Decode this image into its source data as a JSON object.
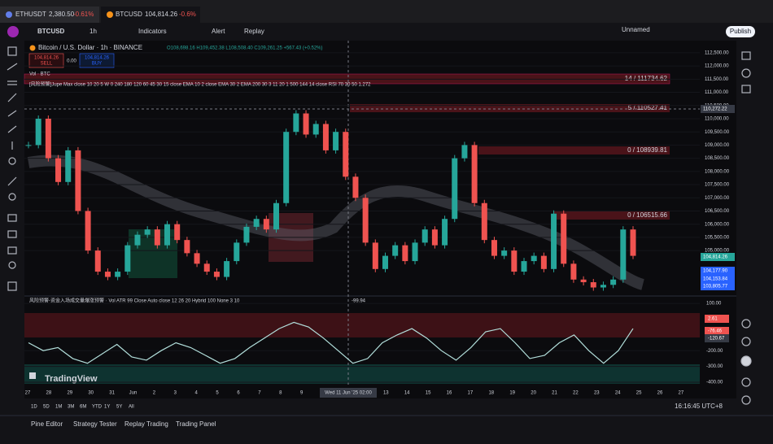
{
  "tabs": [
    {
      "symbol": "ETHUSDT",
      "price": "2,380.50",
      "change": "-0.61%"
    },
    {
      "symbol": "BTCUSD",
      "price": "104,814.26",
      "change": "-0.6%"
    }
  ],
  "toolbar": {
    "symbol": "BTCUSD",
    "interval": "1h",
    "indicators": "Indicators",
    "alert": "Alert",
    "replay": "Replay",
    "layout": "Unnamed",
    "publish": "Publish"
  },
  "legend": {
    "title": "Bitcoin / U.S. Dollar · 1h · BINANCE",
    "ohlc": "O108,698.16 H109,452.38 L108,508.40 C109,261.25 +567.43 (+0.52%)",
    "sell": "104,814.26",
    "sell_label": "SELL",
    "spread": "0.00",
    "buy": "104,814.26",
    "buy_label": "BUY",
    "volume": "Vol · BTC",
    "indicator": "[风险预警]Jupe Max close 10 20 5 W 0 240 180 120 60 45 30 15 close EMA 10 2 close EMA 30 2 EMA 200 30 3 11 20 1 500 144 14 close RSI 70 30 50 1.272",
    "osc": "风险预警-资金入场成交量爆涨预警 · Vol ATR 99 Close Auto close 12 26 20 Hybrid 100 None 3 10",
    "osc_value": "-99.94"
  },
  "levels": [
    "14 / 111734.62",
    "5 / 110527.41",
    "0 / 108939.81",
    "0 / 106515.66"
  ],
  "chart_data": {
    "type": "candlestick",
    "closes": [
      109000,
      110000,
      108500,
      107600,
      108800,
      106500,
      105000,
      104200,
      104000,
      104200,
      105200,
      105600,
      105800,
      105200,
      106000,
      105400,
      104900,
      104500,
      104200,
      104000,
      104600,
      105300,
      105900,
      106200,
      105800,
      106800,
      109500,
      110200,
      109400,
      109800,
      108800,
      109500,
      107800,
      107000,
      105300,
      104300,
      104800,
      105200,
      104600,
      105300,
      105800,
      105200,
      106200,
      108500,
      109000,
      106800,
      105400,
      104800,
      105000,
      104200,
      104600,
      104800,
      104300,
      106400,
      104500,
      103900,
      103800,
      103600,
      103700,
      103900,
      105800,
      104800
    ],
    "ylim": [
      103400,
      112960
    ],
    "yticks": [
      {
        "value": 112500,
        "label": "112,500.00"
      },
      {
        "value": 112000,
        "label": "112,000.00"
      },
      {
        "value": 111500,
        "label": "111,500.00"
      },
      {
        "value": 111000,
        "label": "111,000.00"
      },
      {
        "value": 110500,
        "label": "110,500.00"
      },
      {
        "value": 110000,
        "label": "110,000.00"
      },
      {
        "value": 109500,
        "label": "109,500.00"
      },
      {
        "value": 109000,
        "label": "109,000.00"
      },
      {
        "value": 108500,
        "label": "108,500.00"
      },
      {
        "value": 108000,
        "label": "108,000.00"
      },
      {
        "value": 107500,
        "label": "107,500.00"
      },
      {
        "value": 107000,
        "label": "107,000.00"
      },
      {
        "value": 106500,
        "label": "106,500.00"
      },
      {
        "value": 106000,
        "label": "106,000.00"
      },
      {
        "value": 105500,
        "label": "105,500.00"
      },
      {
        "value": 105000,
        "label": "105,000.00"
      }
    ],
    "x_labels": [
      "27",
      "28",
      "29",
      "30",
      "31",
      "Jun",
      "2",
      "3",
      "4",
      "5",
      "6",
      "7",
      "8",
      "9",
      null,
      null,
      null,
      "13",
      "14",
      "15",
      "16",
      "17",
      "18",
      "19",
      "20",
      "21",
      "22",
      "23",
      "24",
      "25",
      "26",
      "27"
    ],
    "crosshair": "Wed 11 Jun '25  02:00",
    "price_badges": [
      "110,272.22",
      "104,814.26",
      "104,177.90",
      "104,153.84",
      "103,805.77"
    ]
  },
  "oscillator": {
    "values": [
      -150,
      -200,
      -180,
      -250,
      -280,
      -220,
      -160,
      -240,
      -260,
      -200,
      -150,
      -180,
      -230,
      -280,
      -250,
      -180,
      -120,
      -60,
      -20,
      -50,
      -120,
      -200,
      -280,
      -250,
      -150,
      -100,
      -60,
      -120,
      -200,
      -260,
      -180,
      -80,
      -60,
      -150,
      -250,
      -230,
      -150,
      -100,
      -200,
      -280,
      -200,
      -60
    ],
    "ylim": [
      -426,
      142
    ],
    "yticks": [
      {
        "value": 100,
        "label": "100.00"
      },
      {
        "value": -200,
        "label": "-200.00"
      },
      {
        "value": -300,
        "label": "-300.00"
      },
      {
        "value": -400,
        "label": "-400.00"
      }
    ],
    "badges": [
      "2.61",
      "-76.46",
      "-120.67"
    ]
  },
  "logo": "TradingView",
  "ranges": [
    "1D",
    "5D",
    "1M",
    "3M",
    "6M",
    "YTD",
    "1Y",
    "5Y",
    "All"
  ],
  "clock": "16:16:45 UTC+8",
  "panels": [
    "Pine Editor",
    "Strategy Tester",
    "Replay Trading",
    "Trading Panel"
  ]
}
